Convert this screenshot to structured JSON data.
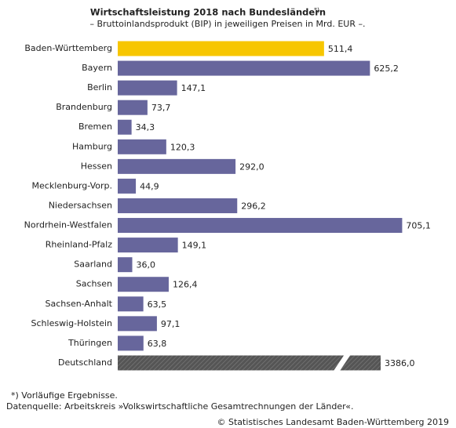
{
  "chart_data": {
    "type": "bar",
    "orientation": "horizontal",
    "title": "Wirtschaftsleistung 2018 nach Bundesländern",
    "title_note": "*)",
    "subtitle": "– Bruttoinlandsprodukt (BIP) in jeweiligen Preisen in Mrd. EUR –.",
    "categories": [
      "Baden-Württemberg",
      "Bayern",
      "Berlin",
      "Brandenburg",
      "Bremen",
      "Hamburg",
      "Hessen",
      "Mecklenburg-Vorp.",
      "Niedersachsen",
      "Nordrhein-Westfalen",
      "Rheinland-Pfalz",
      "Saarland",
      "Sachsen",
      "Sachsen-Anhalt",
      "Schleswig-Holstein",
      "Thüringen",
      "Deutschland"
    ],
    "values": [
      511.4,
      625.2,
      147.1,
      73.7,
      34.3,
      120.3,
      292.0,
      44.9,
      296.2,
      705.1,
      149.1,
      36.0,
      126.4,
      63.5,
      97.1,
      63.8,
      3386.0
    ],
    "value_labels": [
      "511,4",
      "625,2",
      "147,1",
      "73,7",
      "34,3",
      "120,3",
      "292,0",
      "44,9",
      "296,2",
      "705,1",
      "149,1",
      "36,0",
      "126,4",
      "63,5",
      "97,1",
      "63,8",
      "3386,0"
    ],
    "colors": [
      "#f7c600",
      "#67669c",
      "#67669c",
      "#67669c",
      "#67669c",
      "#67669c",
      "#67669c",
      "#67669c",
      "#67669c",
      "#67669c",
      "#67669c",
      "#67669c",
      "#67669c",
      "#67669c",
      "#67669c",
      "#67669c",
      "#555555"
    ],
    "footnotes": [
      "*) Vorläufige Ergebnisse.",
      "Datenquelle: Arbeitskreis »Volkswirtschaftliche Gesamtrechnungen der Länder«."
    ],
    "copyright": "© Statistisches Landesamt Baden-Württemberg 2019"
  }
}
